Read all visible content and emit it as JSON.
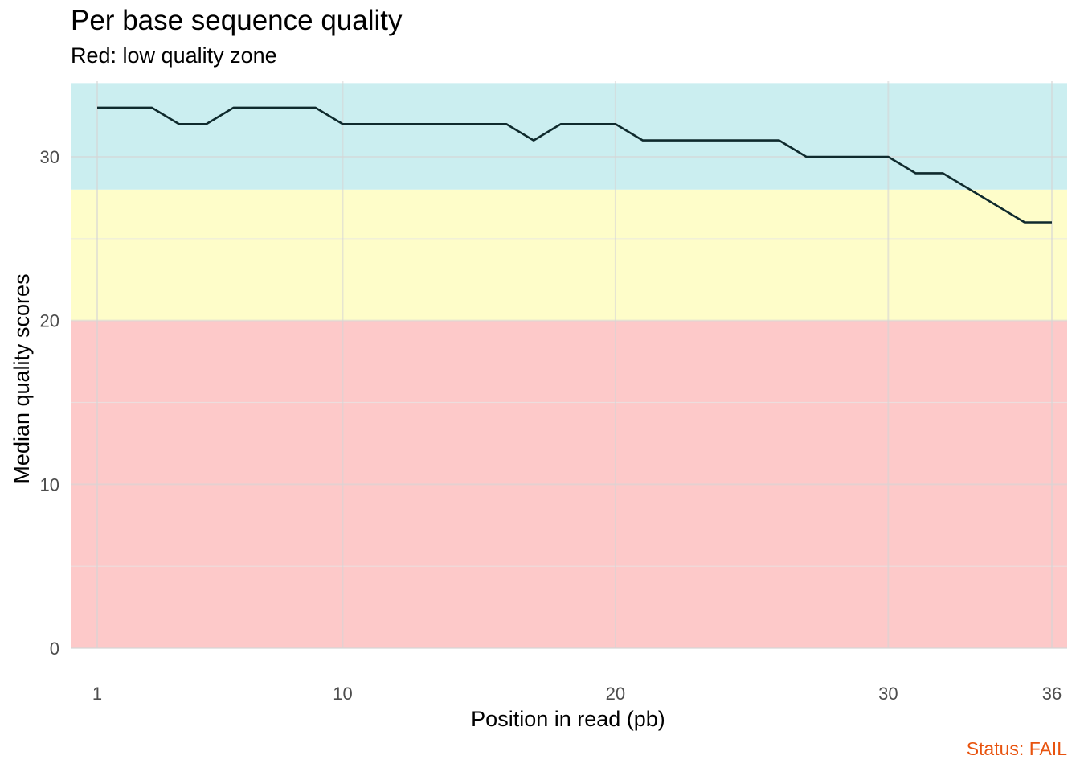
{
  "chart_data": {
    "type": "line",
    "title": "Per base sequence quality",
    "subtitle": "Red: low quality zone",
    "xlabel": "Position in read (pb)",
    "ylabel": "Median quality scores",
    "caption": "Status: FAIL",
    "xlim": [
      1,
      36
    ],
    "ylim": [
      0,
      34.5
    ],
    "x_ticks": [
      1,
      10,
      20,
      30,
      36
    ],
    "y_ticks": [
      0,
      10,
      20,
      30
    ],
    "grid": true,
    "legend": "none",
    "bands": [
      {
        "from": 0,
        "to": 20,
        "color": "#fdc9c9"
      },
      {
        "from": 20,
        "to": 28,
        "color": "#fefdc9"
      },
      {
        "from": 28,
        "to": 34.5,
        "color": "#cbeef0"
      }
    ],
    "series": [
      {
        "x": [
          1,
          2,
          3,
          4,
          5,
          6,
          7,
          8,
          9,
          10,
          11,
          12,
          13,
          14,
          15,
          16,
          17,
          18,
          19,
          20,
          21,
          22,
          23,
          24,
          25,
          26,
          27,
          28,
          29,
          30,
          31,
          32,
          33,
          34,
          35,
          36
        ],
        "values": [
          33,
          33,
          33,
          32,
          32,
          33,
          33,
          33,
          33,
          32,
          32,
          32,
          32,
          32,
          32,
          32,
          31,
          32,
          32,
          32,
          31,
          31,
          31,
          31,
          31,
          31,
          30,
          30,
          30,
          30,
          29,
          29,
          28,
          27,
          26,
          26
        ],
        "color": "#0f2a2d"
      }
    ],
    "colors": {
      "caption": "#e8530e",
      "grid_major": "#d6d6d6",
      "grid_minor": "#e6e6e6",
      "tick_label": "#4d4d4d",
      "line": "#0f2a2d"
    }
  }
}
